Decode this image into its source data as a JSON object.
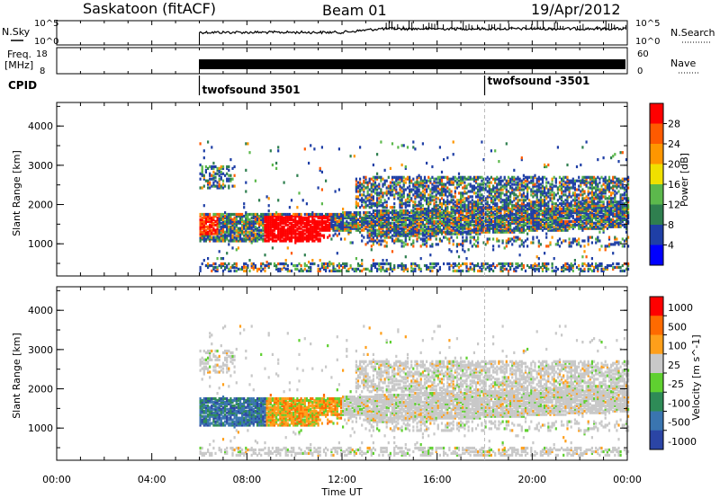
{
  "header": {
    "station": "Saskatoon (fitACF)",
    "beam": "Beam 01",
    "date": "19/Apr/2012"
  },
  "strip_labels": {
    "nsky": "N.Sky",
    "freq_line1": "Freq.",
    "freq_line2": "[MHz]",
    "cpid": "CPID",
    "nsearch": "N.Search",
    "nave": "Nave",
    "nsky_hi": "10^5",
    "nsky_lo": "10^0",
    "freq_hi": "18",
    "freq_lo": "8",
    "nave_hi": "60",
    "nave_lo": "0"
  },
  "cpid_segments": [
    {
      "label": "twofsound 3501",
      "start_hour": 6.0
    },
    {
      "label": "twofsound -3501",
      "start_hour": 18.0
    }
  ],
  "colors": {
    "power_scale": [
      "#0000ff",
      "#1f3fa6",
      "#2f7f4f",
      "#5cb84c",
      "#f0e000",
      "#ff9600",
      "#ff5a00",
      "#ff0000"
    ],
    "velocity_scale": [
      "#2b45a5",
      "#3a75b0",
      "#2e8b57",
      "#5fd030",
      "#c8c8c8",
      "#ff9f1a",
      "#ff6a00",
      "#ff0000"
    ]
  },
  "chart_data": [
    {
      "type": "heatmap",
      "ylabel": "Slant Range [km]",
      "yticks": [
        1000,
        2000,
        3000,
        4000
      ],
      "ylim": [
        180,
        4600
      ],
      "xlim": [
        0,
        24
      ],
      "colorbar": {
        "label": "Power [dB]",
        "ticks": [
          "4",
          "8",
          "12",
          "16",
          "20",
          "24",
          "28"
        ]
      },
      "data_hours": [
        6,
        24
      ]
    },
    {
      "type": "heatmap",
      "ylabel": "Slant Range [km]",
      "yticks": [
        1000,
        2000,
        3000,
        4000
      ],
      "ylim": [
        180,
        4600
      ],
      "xlim": [
        0,
        24
      ],
      "xlabel": "Time UT",
      "xticks": [
        "00:00",
        "04:00",
        "08:00",
        "12:00",
        "16:00",
        "20:00",
        "00:00"
      ],
      "colorbar": {
        "label": "Velocity [m s^-1]",
        "ticks": [
          "1000",
          "500",
          "100",
          "25",
          "-25",
          "-100",
          "-500",
          "-1000"
        ]
      },
      "data_hours": [
        6,
        24
      ]
    }
  ]
}
